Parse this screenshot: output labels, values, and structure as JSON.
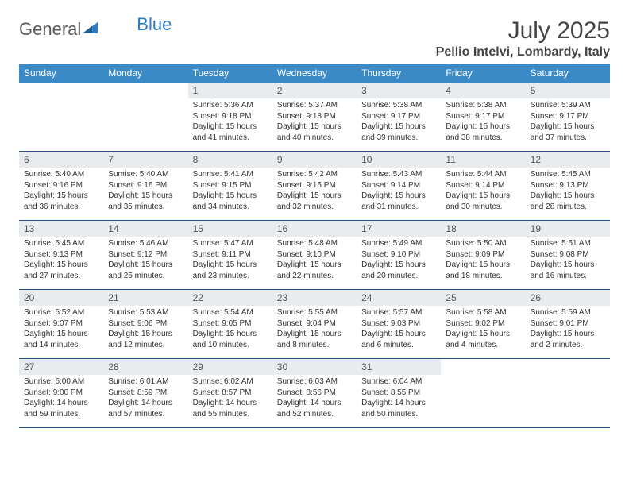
{
  "brand": {
    "part1": "General",
    "part2": "Blue"
  },
  "title": "July 2025",
  "location": "Pellio Intelvi, Lombardy, Italy",
  "colors": {
    "header_bg": "#3a8ac8",
    "week_divider": "#20528a",
    "daynum_bg": "#e9ecef",
    "logo_gray": "#5a5a5a",
    "logo_blue": "#2d7bc0"
  },
  "days_of_week": [
    "Sunday",
    "Monday",
    "Tuesday",
    "Wednesday",
    "Thursday",
    "Friday",
    "Saturday"
  ],
  "first_weekday_index": 2,
  "days": [
    {
      "n": 1,
      "sunrise": "5:36 AM",
      "sunset": "9:18 PM",
      "dl_h": 15,
      "dl_m": 41
    },
    {
      "n": 2,
      "sunrise": "5:37 AM",
      "sunset": "9:18 PM",
      "dl_h": 15,
      "dl_m": 40
    },
    {
      "n": 3,
      "sunrise": "5:38 AM",
      "sunset": "9:17 PM",
      "dl_h": 15,
      "dl_m": 39
    },
    {
      "n": 4,
      "sunrise": "5:38 AM",
      "sunset": "9:17 PM",
      "dl_h": 15,
      "dl_m": 38
    },
    {
      "n": 5,
      "sunrise": "5:39 AM",
      "sunset": "9:17 PM",
      "dl_h": 15,
      "dl_m": 37
    },
    {
      "n": 6,
      "sunrise": "5:40 AM",
      "sunset": "9:16 PM",
      "dl_h": 15,
      "dl_m": 36
    },
    {
      "n": 7,
      "sunrise": "5:40 AM",
      "sunset": "9:16 PM",
      "dl_h": 15,
      "dl_m": 35
    },
    {
      "n": 8,
      "sunrise": "5:41 AM",
      "sunset": "9:15 PM",
      "dl_h": 15,
      "dl_m": 34
    },
    {
      "n": 9,
      "sunrise": "5:42 AM",
      "sunset": "9:15 PM",
      "dl_h": 15,
      "dl_m": 32
    },
    {
      "n": 10,
      "sunrise": "5:43 AM",
      "sunset": "9:14 PM",
      "dl_h": 15,
      "dl_m": 31
    },
    {
      "n": 11,
      "sunrise": "5:44 AM",
      "sunset": "9:14 PM",
      "dl_h": 15,
      "dl_m": 30
    },
    {
      "n": 12,
      "sunrise": "5:45 AM",
      "sunset": "9:13 PM",
      "dl_h": 15,
      "dl_m": 28
    },
    {
      "n": 13,
      "sunrise": "5:45 AM",
      "sunset": "9:13 PM",
      "dl_h": 15,
      "dl_m": 27
    },
    {
      "n": 14,
      "sunrise": "5:46 AM",
      "sunset": "9:12 PM",
      "dl_h": 15,
      "dl_m": 25
    },
    {
      "n": 15,
      "sunrise": "5:47 AM",
      "sunset": "9:11 PM",
      "dl_h": 15,
      "dl_m": 23
    },
    {
      "n": 16,
      "sunrise": "5:48 AM",
      "sunset": "9:10 PM",
      "dl_h": 15,
      "dl_m": 22
    },
    {
      "n": 17,
      "sunrise": "5:49 AM",
      "sunset": "9:10 PM",
      "dl_h": 15,
      "dl_m": 20
    },
    {
      "n": 18,
      "sunrise": "5:50 AM",
      "sunset": "9:09 PM",
      "dl_h": 15,
      "dl_m": 18
    },
    {
      "n": 19,
      "sunrise": "5:51 AM",
      "sunset": "9:08 PM",
      "dl_h": 15,
      "dl_m": 16
    },
    {
      "n": 20,
      "sunrise": "5:52 AM",
      "sunset": "9:07 PM",
      "dl_h": 15,
      "dl_m": 14
    },
    {
      "n": 21,
      "sunrise": "5:53 AM",
      "sunset": "9:06 PM",
      "dl_h": 15,
      "dl_m": 12
    },
    {
      "n": 22,
      "sunrise": "5:54 AM",
      "sunset": "9:05 PM",
      "dl_h": 15,
      "dl_m": 10
    },
    {
      "n": 23,
      "sunrise": "5:55 AM",
      "sunset": "9:04 PM",
      "dl_h": 15,
      "dl_m": 8
    },
    {
      "n": 24,
      "sunrise": "5:57 AM",
      "sunset": "9:03 PM",
      "dl_h": 15,
      "dl_m": 6
    },
    {
      "n": 25,
      "sunrise": "5:58 AM",
      "sunset": "9:02 PM",
      "dl_h": 15,
      "dl_m": 4
    },
    {
      "n": 26,
      "sunrise": "5:59 AM",
      "sunset": "9:01 PM",
      "dl_h": 15,
      "dl_m": 2
    },
    {
      "n": 27,
      "sunrise": "6:00 AM",
      "sunset": "9:00 PM",
      "dl_h": 14,
      "dl_m": 59
    },
    {
      "n": 28,
      "sunrise": "6:01 AM",
      "sunset": "8:59 PM",
      "dl_h": 14,
      "dl_m": 57
    },
    {
      "n": 29,
      "sunrise": "6:02 AM",
      "sunset": "8:57 PM",
      "dl_h": 14,
      "dl_m": 55
    },
    {
      "n": 30,
      "sunrise": "6:03 AM",
      "sunset": "8:56 PM",
      "dl_h": 14,
      "dl_m": 52
    },
    {
      "n": 31,
      "sunrise": "6:04 AM",
      "sunset": "8:55 PM",
      "dl_h": 14,
      "dl_m": 50
    }
  ],
  "labels": {
    "sunrise": "Sunrise:",
    "sunset": "Sunset:",
    "daylight": "Daylight:",
    "hours": "hours",
    "and": "and",
    "minutes": "minutes."
  }
}
